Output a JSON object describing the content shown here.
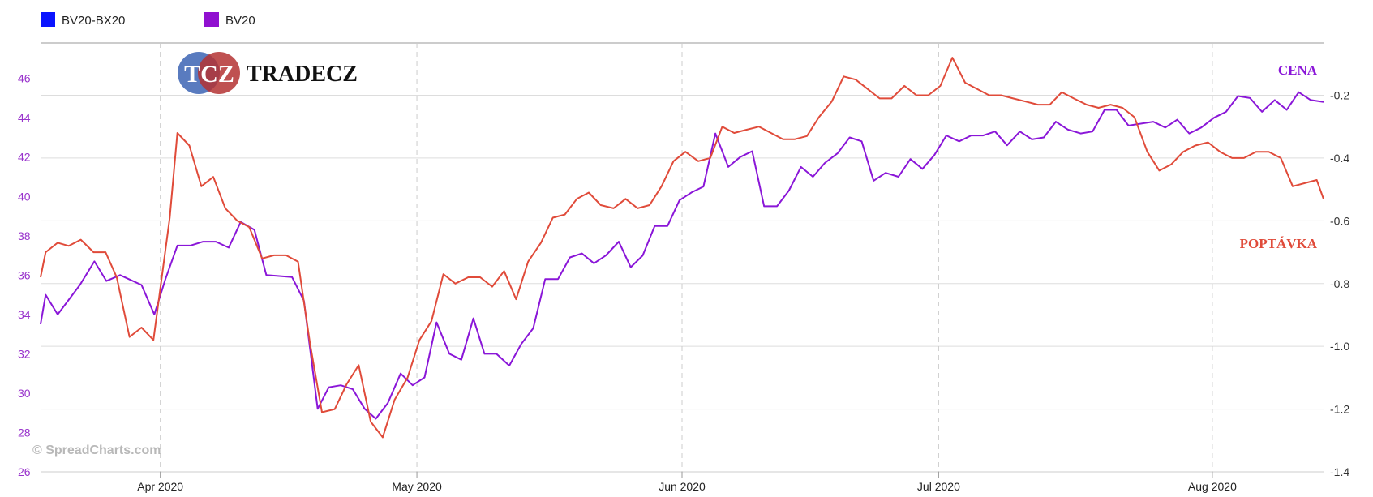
{
  "logo": {
    "badge": "TCZ",
    "name": "TRADECZ"
  },
  "watermark": "© SpreadCharts.com",
  "annotations": {
    "top": "CENA",
    "bottom": "POPTÁVKA"
  },
  "colors": {
    "spread": "#e04b3a",
    "price": "#8a16d8",
    "legend_spread": "#0a14ff",
    "legend_price": "#9010d0"
  },
  "chart_data": {
    "type": "line",
    "legend": [
      {
        "name": "BV20-BX20",
        "color": "#0a14ff"
      },
      {
        "name": "BV20",
        "color": "#9010d0"
      }
    ],
    "x_ticks": [
      "Apr 2020",
      "May 2020",
      "Jun 2020",
      "Jul 2020",
      "Aug 2020"
    ],
    "x_tick_days": [
      14,
      44,
      75,
      105,
      137
    ],
    "x_range_days": [
      0,
      150
    ],
    "y_left": {
      "ticks": [
        "26",
        "28",
        "30",
        "32",
        "34",
        "36",
        "38",
        "40",
        "42",
        "44",
        "46"
      ],
      "range": [
        26,
        47.8
      ]
    },
    "y_right": {
      "ticks": [
        "-0.2",
        "-0.4",
        "-0.6",
        "-0.8",
        "-1.0",
        "-1.2",
        "-1.4"
      ],
      "range": [
        -1.4,
        -0.0333
      ]
    },
    "grid": true,
    "legend_position": "top-left",
    "series": [
      {
        "name": "BV20",
        "axis": "left",
        "points": [
          [
            0,
            33.5
          ],
          [
            0.6,
            35
          ],
          [
            2,
            34
          ],
          [
            4.6,
            35.5
          ],
          [
            6.3,
            36.7
          ],
          [
            7.7,
            35.7
          ],
          [
            9.3,
            36
          ],
          [
            11.8,
            35.5
          ],
          [
            13.3,
            34
          ],
          [
            14.6,
            35.8
          ],
          [
            16,
            37.5
          ],
          [
            17.5,
            37.5
          ],
          [
            19,
            37.7
          ],
          [
            20.5,
            37.7
          ],
          [
            22,
            37.4
          ],
          [
            23.4,
            38.7
          ],
          [
            25,
            38.3
          ],
          [
            26.4,
            36
          ],
          [
            29.4,
            35.9
          ],
          [
            30.8,
            34.7
          ],
          [
            32.4,
            29.2
          ],
          [
            33.7,
            30.3
          ],
          [
            35.1,
            30.4
          ],
          [
            36.5,
            30.2
          ],
          [
            37.9,
            29.2
          ],
          [
            39.2,
            28.7
          ],
          [
            40.6,
            29.5
          ],
          [
            42.1,
            31
          ],
          [
            43.5,
            30.4
          ],
          [
            44.9,
            30.8
          ],
          [
            46.3,
            33.6
          ],
          [
            47.8,
            32
          ],
          [
            49.2,
            31.7
          ],
          [
            50.6,
            33.8
          ],
          [
            51.9,
            32
          ],
          [
            53.3,
            32
          ],
          [
            54.8,
            31.4
          ],
          [
            56.2,
            32.5
          ],
          [
            57.6,
            33.3
          ],
          [
            59,
            35.8
          ],
          [
            60.5,
            35.8
          ],
          [
            61.9,
            36.9
          ],
          [
            63.3,
            37.1
          ],
          [
            64.7,
            36.6
          ],
          [
            66.1,
            37
          ],
          [
            67.6,
            37.7
          ],
          [
            69,
            36.4
          ],
          [
            70.4,
            37
          ],
          [
            71.8,
            38.5
          ],
          [
            73.3,
            38.5
          ],
          [
            74.7,
            39.8
          ],
          [
            76.1,
            40.2
          ],
          [
            77.5,
            40.5
          ],
          [
            78.9,
            43.2
          ],
          [
            80.4,
            41.5
          ],
          [
            81.8,
            42
          ],
          [
            83.2,
            42.3
          ],
          [
            84.6,
            39.5
          ],
          [
            86.1,
            39.5
          ],
          [
            87.5,
            40.3
          ],
          [
            88.9,
            41.5
          ],
          [
            90.3,
            41
          ],
          [
            91.7,
            41.7
          ],
          [
            93.2,
            42.2
          ],
          [
            94.6,
            43
          ],
          [
            96,
            42.8
          ],
          [
            97.4,
            40.8
          ],
          [
            98.8,
            41.2
          ],
          [
            100.3,
            41
          ],
          [
            101.7,
            41.9
          ],
          [
            103.1,
            41.4
          ],
          [
            104.5,
            42.1
          ],
          [
            105.9,
            43.1
          ],
          [
            107.4,
            42.8
          ],
          [
            108.8,
            43.1
          ],
          [
            110.2,
            43.1
          ],
          [
            111.6,
            43.3
          ],
          [
            113,
            42.6
          ],
          [
            114.5,
            43.3
          ],
          [
            115.9,
            42.9
          ],
          [
            117.3,
            43
          ],
          [
            118.7,
            43.8
          ],
          [
            120.1,
            43.4
          ],
          [
            121.6,
            43.2
          ],
          [
            123,
            43.3
          ],
          [
            124.4,
            44.4
          ],
          [
            125.8,
            44.4
          ],
          [
            127.2,
            43.6
          ],
          [
            130.1,
            43.8
          ],
          [
            131.5,
            43.5
          ],
          [
            132.9,
            43.9
          ],
          [
            134.3,
            43.2
          ],
          [
            135.7,
            43.5
          ],
          [
            137.2,
            44
          ],
          [
            138.6,
            44.3
          ],
          [
            140,
            45.1
          ],
          [
            141.4,
            45
          ],
          [
            142.8,
            44.3
          ],
          [
            144.3,
            44.9
          ],
          [
            145.7,
            44.4
          ],
          [
            147.1,
            45.3
          ],
          [
            148.5,
            44.9
          ],
          [
            150,
            44.8
          ]
        ]
      },
      {
        "name": "BV20-BX20",
        "axis": "right",
        "points": [
          [
            0,
            -0.78
          ],
          [
            0.6,
            -0.7
          ],
          [
            2,
            -0.67
          ],
          [
            3.3,
            -0.68
          ],
          [
            4.7,
            -0.66
          ],
          [
            6.2,
            -0.7
          ],
          [
            7.6,
            -0.7
          ],
          [
            8.9,
            -0.78
          ],
          [
            10.4,
            -0.97
          ],
          [
            11.8,
            -0.94
          ],
          [
            13.2,
            -0.98
          ],
          [
            15.1,
            -0.59
          ],
          [
            16,
            -0.32
          ],
          [
            17.4,
            -0.36
          ],
          [
            18.8,
            -0.49
          ],
          [
            20.2,
            -0.46
          ],
          [
            21.6,
            -0.56
          ],
          [
            23,
            -0.6
          ],
          [
            24.4,
            -0.62
          ],
          [
            25.9,
            -0.72
          ],
          [
            27.3,
            -0.71
          ],
          [
            28.7,
            -0.71
          ],
          [
            30.1,
            -0.73
          ],
          [
            31.5,
            -0.99
          ],
          [
            32.9,
            -1.21
          ],
          [
            34.4,
            -1.2
          ],
          [
            35.8,
            -1.12
          ],
          [
            37.2,
            -1.06
          ],
          [
            38.6,
            -1.24
          ],
          [
            40,
            -1.29
          ],
          [
            41.4,
            -1.17
          ],
          [
            42.9,
            -1.1
          ],
          [
            44.3,
            -0.98
          ],
          [
            45.7,
            -0.92
          ],
          [
            47.1,
            -0.77
          ],
          [
            48.5,
            -0.8
          ],
          [
            50,
            -0.78
          ],
          [
            51.4,
            -0.78
          ],
          [
            52.8,
            -0.81
          ],
          [
            54.2,
            -0.76
          ],
          [
            55.6,
            -0.85
          ],
          [
            57,
            -0.73
          ],
          [
            58.5,
            -0.67
          ],
          [
            59.9,
            -0.59
          ],
          [
            61.3,
            -0.58
          ],
          [
            62.7,
            -0.53
          ],
          [
            64.1,
            -0.51
          ],
          [
            65.5,
            -0.55
          ],
          [
            67,
            -0.56
          ],
          [
            68.4,
            -0.53
          ],
          [
            69.8,
            -0.56
          ],
          [
            71.2,
            -0.55
          ],
          [
            72.6,
            -0.49
          ],
          [
            74,
            -0.41
          ],
          [
            75.4,
            -0.38
          ],
          [
            76.9,
            -0.41
          ],
          [
            78.3,
            -0.4
          ],
          [
            79.7,
            -0.3
          ],
          [
            81.1,
            -0.32
          ],
          [
            82.5,
            -0.31
          ],
          [
            84,
            -0.3
          ],
          [
            85.4,
            -0.32
          ],
          [
            86.8,
            -0.34
          ],
          [
            88.2,
            -0.34
          ],
          [
            89.6,
            -0.33
          ],
          [
            91,
            -0.27
          ],
          [
            92.5,
            -0.22
          ],
          [
            93.9,
            -0.14
          ],
          [
            95.3,
            -0.15
          ],
          [
            96.7,
            -0.18
          ],
          [
            98.1,
            -0.21
          ],
          [
            99.5,
            -0.21
          ],
          [
            101,
            -0.17
          ],
          [
            102.4,
            -0.2
          ],
          [
            103.8,
            -0.2
          ],
          [
            105.2,
            -0.17
          ],
          [
            106.6,
            -0.08
          ],
          [
            108.1,
            -0.16
          ],
          [
            109.5,
            -0.18
          ],
          [
            110.9,
            -0.2
          ],
          [
            112.3,
            -0.2
          ],
          [
            113.7,
            -0.21
          ],
          [
            115.2,
            -0.22
          ],
          [
            116.6,
            -0.23
          ],
          [
            118,
            -0.23
          ],
          [
            119.4,
            -0.19
          ],
          [
            120.8,
            -0.21
          ],
          [
            122.3,
            -0.23
          ],
          [
            123.7,
            -0.24
          ],
          [
            125.1,
            -0.23
          ],
          [
            126.5,
            -0.24
          ],
          [
            127.9,
            -0.27
          ],
          [
            129.4,
            -0.38
          ],
          [
            130.8,
            -0.44
          ],
          [
            132.2,
            -0.42
          ],
          [
            133.6,
            -0.38
          ],
          [
            135,
            -0.36
          ],
          [
            136.5,
            -0.35
          ],
          [
            137.9,
            -0.38
          ],
          [
            139.3,
            -0.4
          ],
          [
            140.7,
            -0.4
          ],
          [
            142.1,
            -0.38
          ],
          [
            143.6,
            -0.38
          ],
          [
            145,
            -0.4
          ],
          [
            146.4,
            -0.49
          ],
          [
            147.8,
            -0.48
          ],
          [
            149.2,
            -0.47
          ],
          [
            150,
            -0.53
          ]
        ]
      }
    ]
  }
}
